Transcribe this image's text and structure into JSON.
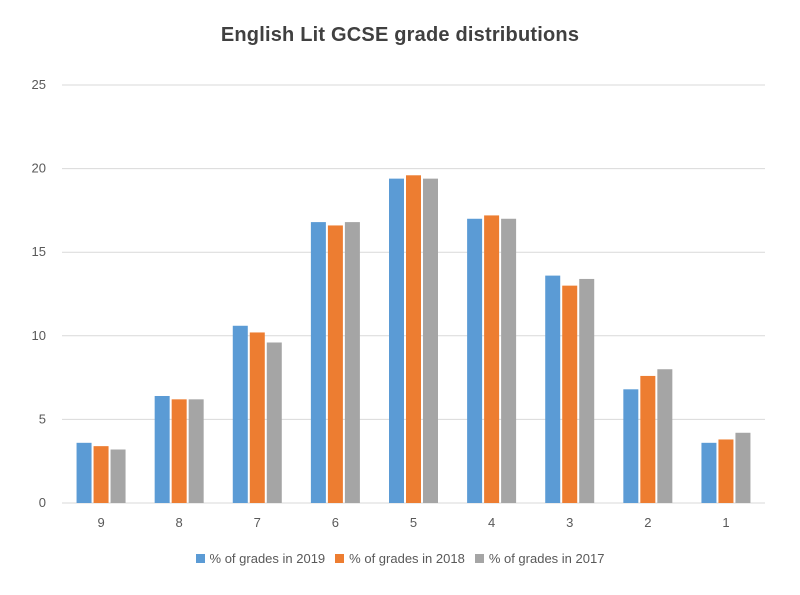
{
  "chart_data": {
    "type": "bar",
    "title": "English Lit GCSE grade distributions",
    "xlabel": "",
    "ylabel": "",
    "categories": [
      "9",
      "8",
      "7",
      "6",
      "5",
      "4",
      "3",
      "2",
      "1"
    ],
    "ylim": [
      0,
      25
    ],
    "yticks": [
      "0",
      "5",
      "10",
      "15",
      "20",
      "25"
    ],
    "grid": true,
    "legend_position": "bottom",
    "series": [
      {
        "name": "% of grades in 2019",
        "color": "#5B9BD5",
        "values": [
          3.6,
          6.4,
          10.6,
          16.8,
          19.4,
          17.0,
          13.6,
          6.8,
          3.6
        ]
      },
      {
        "name": "% of grades in 2018",
        "color": "#ED7D31",
        "values": [
          3.4,
          6.2,
          10.2,
          16.6,
          19.6,
          17.2,
          13.0,
          7.6,
          3.8
        ]
      },
      {
        "name": "% of grades in 2017",
        "color": "#A5A5A5",
        "values": [
          3.2,
          6.2,
          9.6,
          16.8,
          19.4,
          17.0,
          13.4,
          8.0,
          4.2
        ]
      }
    ]
  }
}
